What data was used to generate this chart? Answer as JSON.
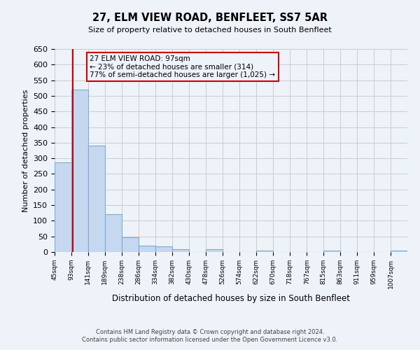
{
  "title": "27, ELM VIEW ROAD, BENFLEET, SS7 5AR",
  "subtitle": "Size of property relative to detached houses in South Benfleet",
  "xlabel": "Distribution of detached houses by size in South Benfleet",
  "ylabel": "Number of detached properties",
  "bin_edges": [
    45,
    93,
    141,
    189,
    238,
    286,
    334,
    382,
    430,
    478,
    526,
    574,
    622,
    670,
    718,
    767,
    815,
    863,
    911,
    959,
    1007
  ],
  "bin_labels": [
    "45sqm",
    "93sqm",
    "141sqm",
    "189sqm",
    "238sqm",
    "286sqm",
    "334sqm",
    "382sqm",
    "430sqm",
    "478sqm",
    "526sqm",
    "574sqm",
    "622sqm",
    "670sqm",
    "718sqm",
    "767sqm",
    "815sqm",
    "863sqm",
    "911sqm",
    "959sqm",
    "1007sqm"
  ],
  "counts": [
    287,
    519,
    341,
    122,
    48,
    20,
    18,
    10,
    0,
    8,
    0,
    0,
    5,
    0,
    0,
    0,
    5,
    0,
    0,
    0,
    5
  ],
  "bar_color": "#c5d8f0",
  "bar_edge_color": "#7aadd4",
  "property_value": 97,
  "property_line_color": "#cc0000",
  "ylim": [
    0,
    650
  ],
  "yticks": [
    0,
    50,
    100,
    150,
    200,
    250,
    300,
    350,
    400,
    450,
    500,
    550,
    600,
    650
  ],
  "annotation_text_line1": "27 ELM VIEW ROAD: 97sqm",
  "annotation_text_line2": "← 23% of detached houses are smaller (314)",
  "annotation_text_line3": "77% of semi-detached houses are larger (1,025) →",
  "annotation_box_color": "#cc0000",
  "footer_line1": "Contains HM Land Registry data © Crown copyright and database right 2024.",
  "footer_line2": "Contains public sector information licensed under the Open Government Licence v3.0.",
  "grid_color": "#cccccc",
  "background_color": "#eef2f9"
}
